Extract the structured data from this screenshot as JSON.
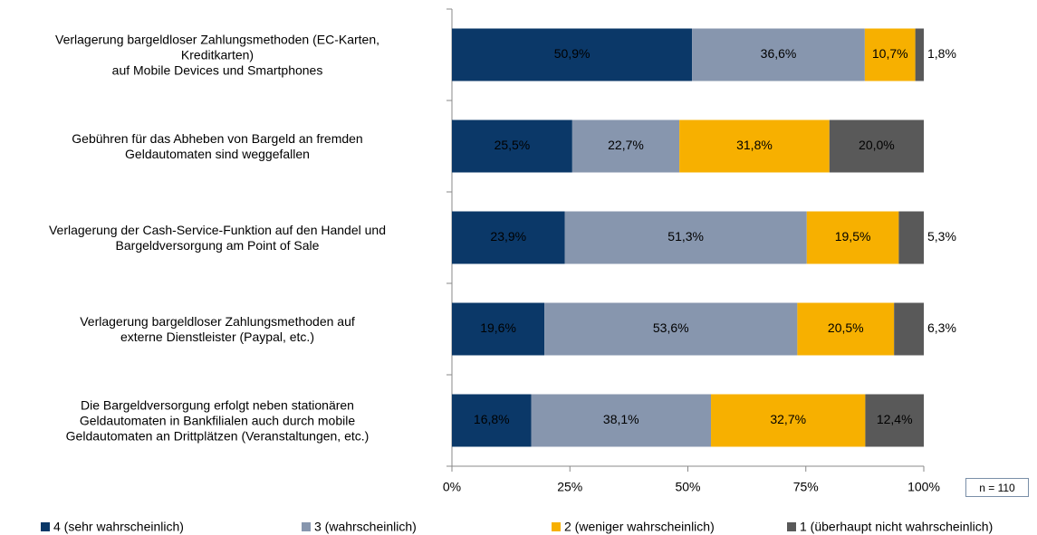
{
  "chart_data": {
    "type": "stacked-barh",
    "categories": [
      "Verlagerung bargeldloser Zahlungsmethoden (EC-Karten,\nKreditkarten)\nauf Mobile Devices und Smartphones",
      "Gebühren für das Abheben von Bargeld an fremden\nGeldautomaten sind weggefallen",
      "Verlagerung der Cash-Service-Funktion auf den Handel und\nBargeldversorgung am Point of Sale",
      "Verlagerung bargeldloser Zahlungsmethoden auf\nexterne Dienstleister (Paypal, etc.)",
      "Die Bargeldversorgung erfolgt neben stationären\nGeldautomaten in Bankfilialen auch durch mobile\nGeldautomaten an Drittplätzen (Veranstaltungen, etc.)"
    ],
    "series": [
      {
        "name": "4 (sehr wahrscheinlich)",
        "color": "#0b3868",
        "values": [
          50.9,
          25.5,
          23.9,
          19.6,
          16.8
        ],
        "value_labels": [
          "50,9%",
          "25,5%",
          "23,9%",
          "19,6%",
          "16,8%"
        ]
      },
      {
        "name": "3 (wahrscheinlich)",
        "color": "#8796ae",
        "values": [
          36.6,
          22.7,
          51.3,
          53.6,
          38.1
        ],
        "value_labels": [
          "36,6%",
          "22,7%",
          "51,3%",
          "53,6%",
          "38,1%"
        ]
      },
      {
        "name": "2 (weniger wahrscheinlich)",
        "color": "#f7b000",
        "values": [
          10.7,
          31.8,
          19.5,
          20.5,
          32.7
        ],
        "value_labels": [
          "10,7%",
          "31,8%",
          "19,5%",
          "20,5%",
          "32,7%"
        ]
      },
      {
        "name": "1 (überhaupt nicht wahrscheinlich)",
        "color": "#595959",
        "values": [
          1.8,
          20.0,
          5.3,
          6.3,
          12.4
        ],
        "value_labels": [
          "1,8%",
          "20,0%",
          "5,3%",
          "6,3%",
          "12,4%"
        ]
      }
    ],
    "xlim": [
      0,
      100
    ],
    "xticks": [
      {
        "value": 0,
        "label": "0%"
      },
      {
        "value": 25,
        "label": "25%"
      },
      {
        "value": 50,
        "label": "50%"
      },
      {
        "value": 75,
        "label": "75%"
      },
      {
        "value": 100,
        "label": "100%"
      }
    ],
    "annotation": "n = 110"
  }
}
